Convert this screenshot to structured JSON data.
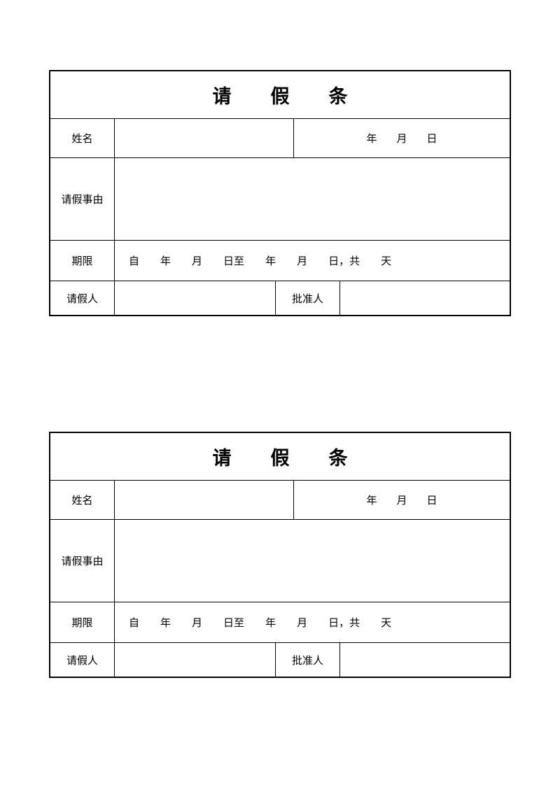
{
  "form": {
    "title": {
      "c1": "请",
      "c2": "假",
      "c3": "条"
    },
    "labels": {
      "name": "姓名",
      "reason": "请假事由",
      "period": "期限",
      "requester": "请假人",
      "approver": "批准人"
    },
    "date": {
      "year": "年",
      "month": "月",
      "day": "日"
    },
    "period": {
      "from": "自",
      "year1": "年",
      "month1": "月",
      "dayTo": "日至",
      "year2": "年",
      "month2": "月",
      "day2total": "日，共",
      "days": "天"
    },
    "styling": {
      "border_color": "#000000",
      "background": "#ffffff",
      "title_fontsize": 27,
      "label_fontsize": 15,
      "border_width": 1.5,
      "outer_border_width": 2
    }
  }
}
